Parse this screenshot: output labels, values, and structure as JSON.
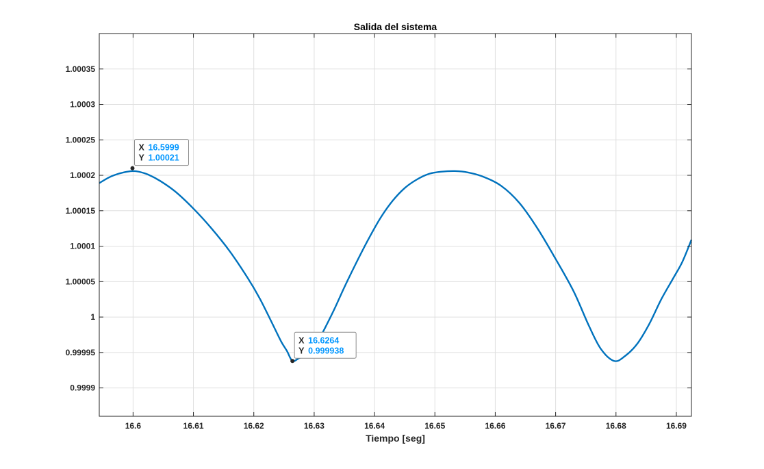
{
  "chart_data": {
    "type": "line",
    "title": "Salida del sistema",
    "xlabel": "Tiempo [seg]",
    "ylabel": "",
    "xlim": [
      16.5944,
      16.6925
    ],
    "ylim": [
      0.99986,
      1.0004
    ],
    "xticks": [
      16.6,
      16.61,
      16.62,
      16.63,
      16.64,
      16.65,
      16.66,
      16.67,
      16.68,
      16.69
    ],
    "xtick_labels": [
      "16.6",
      "16.61",
      "16.62",
      "16.63",
      "16.64",
      "16.65",
      "16.66",
      "16.67",
      "16.68",
      "16.69"
    ],
    "yticks": [
      0.9999,
      0.99995,
      1,
      1.00005,
      1.0001,
      1.00015,
      1.0002,
      1.00025,
      1.0003,
      1.00035
    ],
    "ytick_labels": [
      "0.9999",
      "0.99995",
      "1",
      "1.00005",
      "1.0001",
      "1.00015",
      "1.0002",
      "1.00025",
      "1.0003",
      "1.00035"
    ],
    "grid": true,
    "line_color": "#0072bd",
    "series": [
      {
        "x": [
          16.5944,
          16.596,
          16.5975,
          16.599,
          16.6,
          16.601,
          16.6025,
          16.6045,
          16.607,
          16.61,
          16.613,
          16.616,
          16.619,
          16.621,
          16.623,
          16.6245,
          16.6255,
          16.6264,
          16.6275,
          16.629,
          16.63,
          16.631,
          16.632,
          16.6335,
          16.635,
          16.637,
          16.639,
          16.641,
          16.643,
          16.645,
          16.647,
          16.649,
          16.651,
          16.6533,
          16.6555,
          16.658,
          16.661,
          16.664,
          16.667,
          16.67,
          16.673,
          16.6755,
          16.6775,
          16.6797,
          16.6815,
          16.6835,
          16.6855,
          16.6875,
          16.6895,
          16.691,
          16.6925
        ],
        "y": [
          1.000189,
          1.000197,
          1.000202,
          1.000205,
          1.000206,
          1.000205,
          1.000201,
          1.000192,
          1.000177,
          1.000153,
          1.000125,
          1.000093,
          1.000055,
          1.000026,
          0.999992,
          0.999966,
          0.999952,
          0.999938,
          0.999942,
          0.999948,
          0.99996,
          0.999972,
          0.999988,
          1.000014,
          1.000042,
          1.000077,
          1.00011,
          1.00014,
          1.000164,
          1.000182,
          1.000194,
          1.000202,
          1.000205,
          1.000206,
          1.000204,
          1.000198,
          1.000185,
          1.000161,
          1.000125,
          1.000082,
          1.000036,
          0.999988,
          0.999955,
          0.999938,
          0.999945,
          0.999962,
          0.99999,
          1.000025,
          1.000055,
          1.000078,
          1.000109
        ]
      }
    ],
    "datatips": [
      {
        "x": 16.5999,
        "y": 1.00021,
        "x_label": "X",
        "y_label": "Y",
        "x_text": "16.5999",
        "y_text": "1.00021"
      },
      {
        "x": 16.6264,
        "y": 0.999938,
        "x_label": "X",
        "y_label": "Y",
        "x_text": "16.6264",
        "y_text": "0.999938"
      }
    ]
  }
}
